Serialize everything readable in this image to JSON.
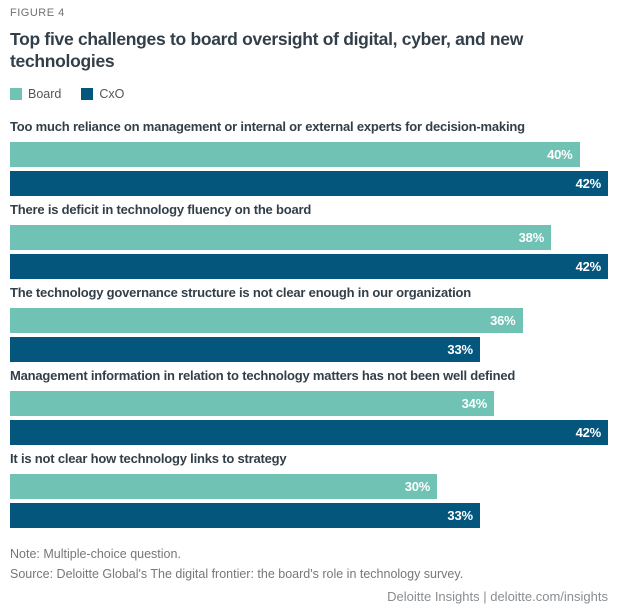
{
  "figure_label": "FIGURE 4",
  "title": "Top five challenges to board oversight of digital, cyber, and new technologies",
  "legend": [
    {
      "label": "Board",
      "color": "#6FC2B4"
    },
    {
      "label": "CxO",
      "color": "#04567D"
    }
  ],
  "chart_data": {
    "type": "bar",
    "orientation": "horizontal",
    "title": "Top five challenges to board oversight of digital, cyber, and new technologies",
    "categories": [
      "Too much reliance on management or internal or external experts for decision-making",
      "There is deficit in technology fluency on the board",
      "The technology governance structure is not clear enough in our organization",
      "Management information in relation to technology matters has not been well defined",
      "It is not clear how technology links to strategy"
    ],
    "series": [
      {
        "name": "Board",
        "color": "#6FC2B4",
        "values": [
          40,
          38,
          36,
          34,
          30
        ]
      },
      {
        "name": "CxO",
        "color": "#04567D",
        "values": [
          42,
          42,
          33,
          42,
          33
        ]
      }
    ],
    "value_suffix": "%",
    "value_label_position": "inside-end",
    "xlim": [
      0,
      42
    ],
    "grid": false,
    "legend_position": "top-left"
  },
  "footer": {
    "note": "Note: Multiple-choice question.",
    "source": "Source: Deloitte Global's The digital frontier: the board's role in technology survey.",
    "branding": "Deloitte Insights | deloitte.com/insights"
  },
  "colors": {
    "board_teal": "#6FC2B4",
    "cxo_blue": "#04567D",
    "title_text": "#333F48",
    "muted_text": "#75787B"
  }
}
